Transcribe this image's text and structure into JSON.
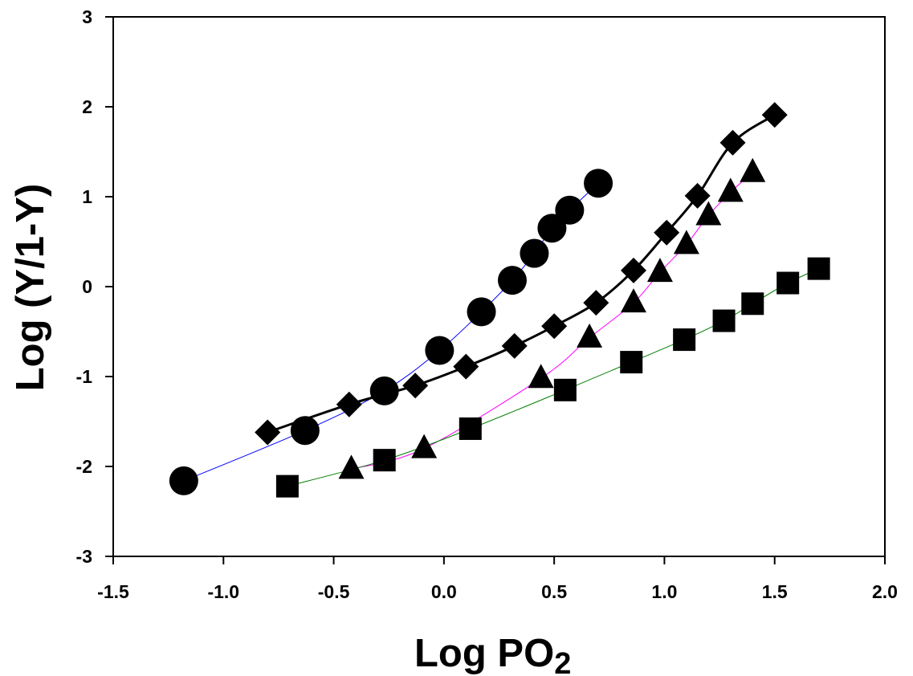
{
  "chart_data": {
    "type": "scatter",
    "xlabel": "Log PO",
    "xlabel_subscript": "2",
    "ylabel": "Log (Y/1-Y)",
    "xlim": [
      -1.5,
      2.0
    ],
    "ylim": [
      -3,
      3
    ],
    "x_ticks": [
      -1.5,
      -1.0,
      -0.5,
      0.0,
      0.5,
      1.0,
      1.5,
      2.0
    ],
    "x_tick_labels": [
      "-1.5",
      "-1.0",
      "-0.5",
      "0.0",
      "0.5",
      "1.0",
      "1.5",
      "2.0"
    ],
    "y_ticks": [
      -3,
      -2,
      -1,
      0,
      1,
      2,
      3
    ],
    "y_tick_labels": [
      "-3",
      "-2",
      "-1",
      "0",
      "1",
      "2",
      "3"
    ],
    "grid": false,
    "legend": "none",
    "series": [
      {
        "marker": "circle",
        "marker_color": "#000000",
        "line_color": "#0000ff",
        "line_width": 1,
        "points": [
          [
            -1.18,
            -2.16
          ],
          [
            -0.63,
            -1.6
          ],
          [
            -0.27,
            -1.16
          ],
          [
            -0.02,
            -0.71
          ],
          [
            0.17,
            -0.28
          ],
          [
            0.31,
            0.07
          ],
          [
            0.41,
            0.37
          ],
          [
            0.49,
            0.65
          ],
          [
            0.57,
            0.85
          ],
          [
            0.7,
            1.15
          ]
        ]
      },
      {
        "marker": "diamond",
        "marker_color": "#000000",
        "line_color": "#000000",
        "line_width": 3,
        "points": [
          [
            -0.8,
            -1.62
          ],
          [
            -0.43,
            -1.31
          ],
          [
            -0.13,
            -1.1
          ],
          [
            0.1,
            -0.89
          ],
          [
            0.32,
            -0.66
          ],
          [
            0.5,
            -0.44
          ],
          [
            0.69,
            -0.18
          ],
          [
            0.86,
            0.18
          ],
          [
            1.01,
            0.6
          ],
          [
            1.15,
            1.01
          ],
          [
            1.31,
            1.6
          ],
          [
            1.5,
            1.91
          ]
        ]
      },
      {
        "marker": "triangle",
        "marker_color": "#000000",
        "line_color": "#ff00ff",
        "line_width": 1,
        "points": [
          [
            -0.42,
            -2.03
          ],
          [
            -0.09,
            -1.8
          ],
          [
            0.44,
            -1.02
          ],
          [
            0.66,
            -0.57
          ],
          [
            0.86,
            -0.18
          ],
          [
            0.98,
            0.16
          ],
          [
            1.1,
            0.47
          ],
          [
            1.2,
            0.79
          ],
          [
            1.3,
            1.05
          ],
          [
            1.4,
            1.27
          ]
        ]
      },
      {
        "marker": "square",
        "marker_color": "#000000",
        "line_color": "#008000",
        "line_width": 1,
        "points": [
          [
            -0.71,
            -2.22
          ],
          [
            -0.27,
            -1.93
          ],
          [
            0.12,
            -1.58
          ],
          [
            0.55,
            -1.15
          ],
          [
            0.85,
            -0.84
          ],
          [
            1.09,
            -0.59
          ],
          [
            1.27,
            -0.38
          ],
          [
            1.4,
            -0.19
          ],
          [
            1.56,
            0.04
          ],
          [
            1.7,
            0.2
          ]
        ]
      }
    ]
  }
}
